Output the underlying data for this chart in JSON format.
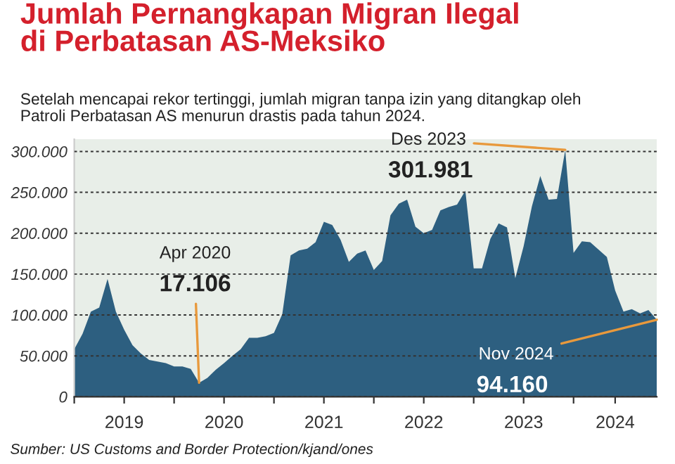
{
  "chart_data": {
    "type": "area",
    "title": "Jumlah Pernangkapan Migran Ilegal\ndi Perbatasan AS-Meksiko",
    "subtitle": "Setelah mencapai rekor tertinggi, jumlah migran tanpa izin yang ditangkap oleh\nPatroli Perbatasan AS menurun drastis pada tahun 2024.",
    "x": [
      "2019-01",
      "2019-02",
      "2019-03",
      "2019-04",
      "2019-05",
      "2019-06",
      "2019-07",
      "2019-08",
      "2019-09",
      "2019-10",
      "2019-11",
      "2019-12",
      "2020-01",
      "2020-02",
      "2020-03",
      "2020-04",
      "2020-05",
      "2020-06",
      "2020-07",
      "2020-08",
      "2020-09",
      "2020-10",
      "2020-11",
      "2020-12",
      "2021-01",
      "2021-02",
      "2021-03",
      "2021-04",
      "2021-05",
      "2021-06",
      "2021-07",
      "2021-08",
      "2021-09",
      "2021-10",
      "2021-11",
      "2021-12",
      "2022-01",
      "2022-02",
      "2022-03",
      "2022-04",
      "2022-05",
      "2022-06",
      "2022-07",
      "2022-08",
      "2022-09",
      "2022-10",
      "2022-11",
      "2022-12",
      "2023-01",
      "2023-02",
      "2023-03",
      "2023-04",
      "2023-05",
      "2023-06",
      "2023-07",
      "2023-08",
      "2023-09",
      "2023-10",
      "2023-11",
      "2023-12",
      "2024-01",
      "2024-02",
      "2024-03",
      "2024-04",
      "2024-05",
      "2024-06",
      "2024-07",
      "2024-08",
      "2024-09",
      "2024-10",
      "2024-11"
    ],
    "series": [
      {
        "color": "#2d5f80",
        "values": [
          58000,
          77000,
          104000,
          109000,
          144000,
          104000,
          82000,
          63000,
          53000,
          45000,
          43000,
          41000,
          37000,
          37000,
          34000,
          17106,
          23000,
          33000,
          41000,
          50000,
          58000,
          72000,
          72000,
          74000,
          78000,
          101000,
          173000,
          179000,
          181000,
          189000,
          214000,
          210000,
          192000,
          165000,
          175000,
          179000,
          155000,
          166000,
          222000,
          236000,
          241000,
          208000,
          200000,
          204000,
          228000,
          232000,
          235000,
          252000,
          157000,
          157000,
          193000,
          212000,
          207000,
          145000,
          184000,
          233000,
          270000,
          241000,
          242000,
          301981,
          176000,
          190000,
          189000,
          180000,
          171000,
          130000,
          104000,
          107000,
          102000,
          106000,
          94160
        ]
      }
    ],
    "xlim": [
      "2019-01",
      "2024-11"
    ],
    "xticks": [
      {
        "value": "2019-01",
        "label": null
      },
      {
        "value": "2019-07",
        "label": "2019"
      },
      {
        "value": "2020-01",
        "label": null
      },
      {
        "value": "2020-07",
        "label": "2020"
      },
      {
        "value": "2021-01",
        "label": null
      },
      {
        "value": "2021-07",
        "label": "2021"
      },
      {
        "value": "2022-01",
        "label": null
      },
      {
        "value": "2022-07",
        "label": "2022"
      },
      {
        "value": "2023-01",
        "label": null
      },
      {
        "value": "2023-07",
        "label": "2023"
      },
      {
        "value": "2024-01",
        "label": null
      },
      {
        "value": "2024-06",
        "label": "2024"
      }
    ],
    "ylim": [
      0,
      315000
    ],
    "yticks": [
      {
        "value": 0,
        "label": "0"
      },
      {
        "value": 50000,
        "label": "50.000"
      },
      {
        "value": 100000,
        "label": "100.000"
      },
      {
        "value": 150000,
        "label": "150.000"
      },
      {
        "value": 200000,
        "label": "200.000"
      },
      {
        "value": 250000,
        "label": "250.000"
      },
      {
        "value": 300000,
        "label": "300.000"
      }
    ],
    "grid": "y",
    "annotations": [
      {
        "text": "Apr 2020\n17.106",
        "x": "2020-04",
        "y": 17106
      },
      {
        "text": "Des 2023\n301.981",
        "x": "2023-12",
        "y": 301981
      },
      {
        "text": "Nov 2024\n94.160",
        "x": "2024-11",
        "y": 94160
      },
      "Sumber: US Customs and Border Protection/kjand/ones"
    ]
  }
}
